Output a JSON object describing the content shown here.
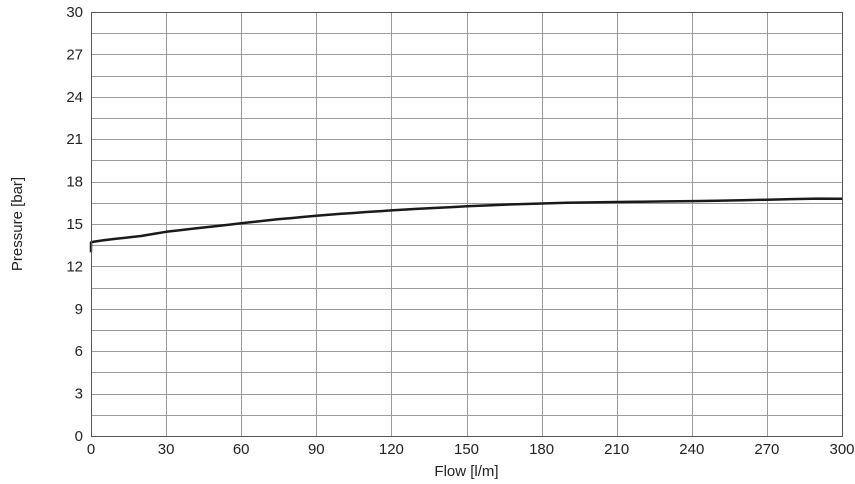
{
  "chart_data": {
    "type": "line",
    "title": "",
    "xlabel": "Flow [l/m]",
    "ylabel": "Pressure [bar]",
    "xlim": [
      0,
      300
    ],
    "ylim": [
      0,
      30
    ],
    "x_ticks": [
      0,
      30,
      60,
      90,
      120,
      150,
      180,
      210,
      240,
      270,
      300
    ],
    "y_ticks": [
      0,
      3,
      6,
      9,
      12,
      15,
      18,
      21,
      24,
      27,
      30
    ],
    "y_minor_step": 1.5,
    "grid": true,
    "legend": "none",
    "series": [
      {
        "color": "#1a1a1a",
        "x": [
          0,
          0,
          1,
          5,
          10,
          15,
          20,
          25,
          30,
          35,
          40,
          45,
          50,
          55,
          60,
          65,
          70,
          75,
          80,
          85,
          90,
          95,
          100,
          105,
          110,
          115,
          120,
          125,
          130,
          135,
          140,
          145,
          150,
          160,
          170,
          180,
          190,
          200,
          210,
          220,
          230,
          240,
          250,
          260,
          270,
          280,
          290,
          300
        ],
        "y": [
          13.0,
          13.7,
          13.75,
          13.85,
          13.95,
          14.05,
          14.15,
          14.3,
          14.45,
          14.55,
          14.65,
          14.75,
          14.85,
          14.95,
          15.05,
          15.15,
          15.25,
          15.35,
          15.42,
          15.5,
          15.58,
          15.65,
          15.72,
          15.78,
          15.85,
          15.9,
          15.96,
          16.02,
          16.07,
          16.12,
          16.16,
          16.2,
          16.25,
          16.33,
          16.4,
          16.45,
          16.5,
          16.53,
          16.56,
          16.58,
          16.6,
          16.62,
          16.65,
          16.68,
          16.72,
          16.76,
          16.8,
          16.78
        ]
      }
    ]
  }
}
